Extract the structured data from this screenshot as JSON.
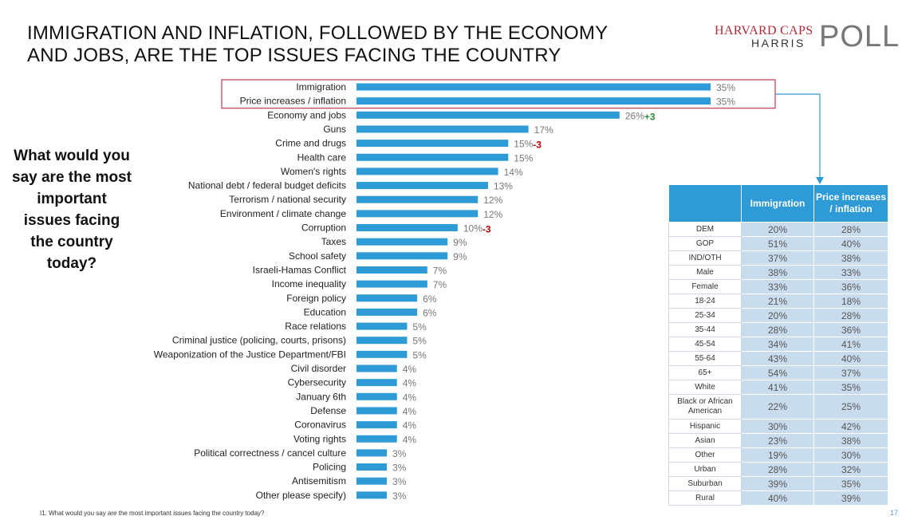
{
  "title_lines": [
    "IMMIGRATION AND INFLATION, FOLLOWED BY THE ECONOMY",
    "AND JOBS, ARE THE TOP ISSUES FACING THE COUNTRY"
  ],
  "logo": {
    "line1": "HARVARD CAPS",
    "line2": "HARRIS",
    "line3": "POLL"
  },
  "question": "What would you say are the most important issues facing the country today?",
  "footnote": "I1. What would you say are the most important issues facing the country today?",
  "page_number": "17",
  "colors": {
    "bar": "#2e9bd6",
    "highlight_box": "#c0384b",
    "positive_change": "#2e8b3a",
    "negative_change": "#c00000",
    "table_header": "#2e9bd6",
    "table_cell": "#c9dcee"
  },
  "chart_data": {
    "type": "bar",
    "orientation": "horizontal",
    "categories": [
      "Immigration",
      "Price increases / inflation",
      "Economy and jobs",
      "Guns",
      "Crime and drugs",
      "Health care",
      "Women's rights",
      "National debt / federal budget deficits",
      "Terrorism / national security",
      "Environment / climate change",
      "Corruption",
      "Taxes",
      "School safety",
      "Israeli-Hamas Conflict",
      "Income inequality",
      "Foreign policy",
      "Education",
      "Race relations",
      "Criminal justice (policing, courts, prisons)",
      "Weaponization of the Justice Department/FBI",
      "Civil disorder",
      "Cybersecurity",
      "January 6th",
      "Defense",
      "Coronavirus",
      "Voting rights",
      "Political correctness / cancel culture",
      "Policing",
      "Antisemitism",
      "Other please specify)"
    ],
    "values": [
      35,
      35,
      26,
      17,
      15,
      15,
      14,
      13,
      12,
      12,
      10,
      9,
      9,
      7,
      7,
      6,
      6,
      5,
      5,
      5,
      4,
      4,
      4,
      4,
      4,
      4,
      3,
      3,
      3,
      3
    ],
    "value_labels": [
      "35%",
      "35%",
      "26%",
      "17%",
      "15%",
      "15%",
      "14%",
      "13%",
      "12%",
      "12%",
      "10%",
      "9%",
      "9%",
      "7%",
      "7%",
      "6%",
      "6%",
      "5%",
      "5%",
      "5%",
      "4%",
      "4%",
      "4%",
      "4%",
      "4%",
      "4%",
      "3%",
      "3%",
      "3%",
      "3%"
    ],
    "changes": [
      {
        "category_index": 2,
        "label": "+3",
        "direction": "up"
      },
      {
        "category_index": 4,
        "label": "-3",
        "direction": "down"
      },
      {
        "category_index": 10,
        "label": "-3",
        "direction": "down"
      }
    ],
    "highlighted_categories": [
      0,
      1
    ],
    "xlim": [
      0,
      35
    ]
  },
  "table": {
    "headers": [
      "",
      "Immigration",
      "Price increases / inflation"
    ],
    "rows": [
      {
        "label": "DEM",
        "imm": "20%",
        "inf": "28%"
      },
      {
        "label": "GOP",
        "imm": "51%",
        "inf": "40%"
      },
      {
        "label": "IND/OTH",
        "imm": "37%",
        "inf": "38%"
      },
      {
        "label": "Male",
        "imm": "38%",
        "inf": "33%"
      },
      {
        "label": "Female",
        "imm": "33%",
        "inf": "36%"
      },
      {
        "label": "18-24",
        "imm": "21%",
        "inf": "18%"
      },
      {
        "label": "25-34",
        "imm": "20%",
        "inf": "28%"
      },
      {
        "label": "35-44",
        "imm": "28%",
        "inf": "36%"
      },
      {
        "label": "45-54",
        "imm": "34%",
        "inf": "41%"
      },
      {
        "label": "55-64",
        "imm": "43%",
        "inf": "40%"
      },
      {
        "label": "65+",
        "imm": "54%",
        "inf": "37%"
      },
      {
        "label": "White",
        "imm": "41%",
        "inf": "35%"
      },
      {
        "label": "Black or African American",
        "imm": "22%",
        "inf": "25%"
      },
      {
        "label": "Hispanic",
        "imm": "30%",
        "inf": "42%"
      },
      {
        "label": "Asian",
        "imm": "23%",
        "inf": "38%"
      },
      {
        "label": "Other",
        "imm": "19%",
        "inf": "30%"
      },
      {
        "label": "Urban",
        "imm": "28%",
        "inf": "32%"
      },
      {
        "label": "Suburban",
        "imm": "39%",
        "inf": "35%"
      },
      {
        "label": "Rural",
        "imm": "40%",
        "inf": "39%"
      }
    ]
  }
}
